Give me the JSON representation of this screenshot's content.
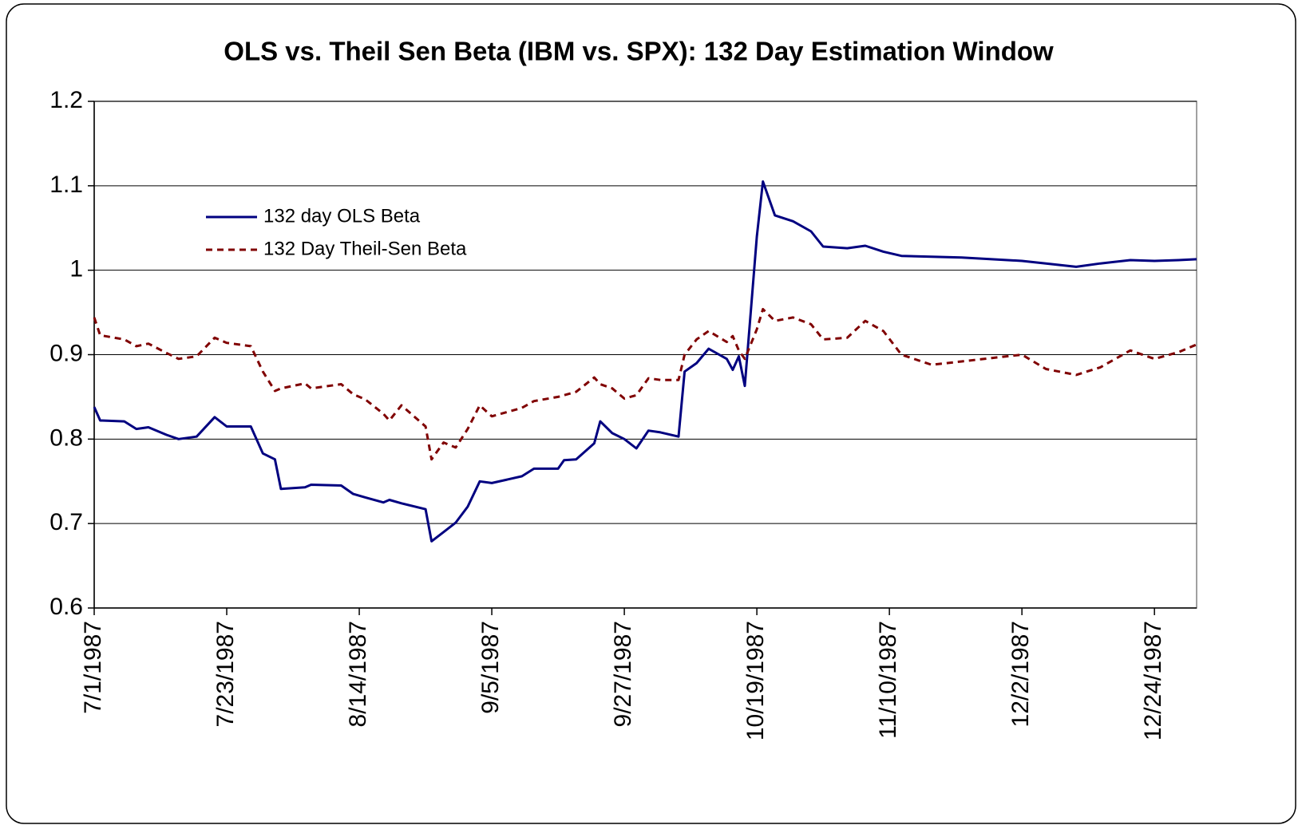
{
  "chart_data": {
    "type": "line",
    "title": "OLS vs. Theil Sen Beta (IBM vs. SPX): 132 Day Estimation Window",
    "x": [
      "7/1/1987",
      "7/2/1987",
      "7/6/1987",
      "7/8/1987",
      "7/10/1987",
      "7/13/1987",
      "7/15/1987",
      "7/18/1987",
      "7/21/1987",
      "7/23/1987",
      "7/27/1987",
      "7/29/1987",
      "7/31/1987",
      "8/1/1987",
      "8/5/1987",
      "8/6/1987",
      "8/11/1987",
      "8/13/1987",
      "8/15/1987",
      "8/18/1987",
      "8/19/1987",
      "8/21/1987",
      "8/25/1987",
      "8/26/1987",
      "8/28/1987",
      "8/30/1987",
      "9/1/1987",
      "9/3/1987",
      "9/5/1987",
      "9/10/1987",
      "9/12/1987",
      "9/16/1987",
      "9/17/1987",
      "9/19/1987",
      "9/22/1987",
      "9/23/1987",
      "9/25/1987",
      "9/27/1987",
      "9/29/1987",
      "10/1/1987",
      "10/3/1987",
      "10/6/1987",
      "10/7/1987",
      "10/9/1987",
      "10/11/1987",
      "10/14/1987",
      "10/15/1987",
      "10/16/1987",
      "10/17/1987",
      "10/19/1987",
      "10/20/1987",
      "10/22/1987",
      "10/25/1987",
      "10/28/1987",
      "10/30/1987",
      "11/3/1987",
      "11/6/1987",
      "11/9/1987",
      "11/12/1987",
      "11/17/1987",
      "11/22/1987",
      "11/27/1987",
      "12/2/1987",
      "12/6/1987",
      "12/11/1987",
      "12/15/1987",
      "12/20/1987",
      "12/24/1987",
      "12/28/1987",
      "12/31/1987"
    ],
    "series": [
      {
        "name": "132 day OLS Beta",
        "color": "#000080",
        "line_style": "solid",
        "values": [
          0.838,
          0.822,
          0.821,
          0.812,
          0.814,
          0.805,
          0.8,
          0.803,
          0.826,
          0.815,
          0.815,
          0.783,
          0.776,
          0.741,
          0.743,
          0.746,
          0.745,
          0.735,
          0.731,
          0.725,
          0.728,
          0.724,
          0.717,
          0.679,
          0.69,
          0.701,
          0.72,
          0.75,
          0.748,
          0.756,
          0.765,
          0.765,
          0.775,
          0.776,
          0.795,
          0.821,
          0.807,
          0.8,
          0.789,
          0.81,
          0.808,
          0.803,
          0.88,
          0.89,
          0.907,
          0.895,
          0.882,
          0.898,
          0.863,
          1.04,
          1.105,
          1.065,
          1.058,
          1.046,
          1.028,
          1.026,
          1.029,
          1.022,
          1.017,
          1.016,
          1.015,
          1.013,
          1.011,
          1.008,
          1.004,
          1.008,
          1.012,
          1.011,
          1.012,
          1.013
        ]
      },
      {
        "name": "132 Day Theil-Sen Beta",
        "color": "#800000",
        "line_style": "dashed",
        "values": [
          0.944,
          0.923,
          0.918,
          0.91,
          0.913,
          0.902,
          0.895,
          0.898,
          0.92,
          0.914,
          0.91,
          0.88,
          0.857,
          0.86,
          0.866,
          0.86,
          0.865,
          0.853,
          0.847,
          0.83,
          0.822,
          0.84,
          0.815,
          0.776,
          0.796,
          0.79,
          0.812,
          0.84,
          0.827,
          0.837,
          0.845,
          0.85,
          0.852,
          0.856,
          0.873,
          0.865,
          0.86,
          0.848,
          0.852,
          0.872,
          0.87,
          0.87,
          0.9,
          0.918,
          0.928,
          0.915,
          0.922,
          0.905,
          0.895,
          0.93,
          0.954,
          0.94,
          0.944,
          0.936,
          0.918,
          0.92,
          0.94,
          0.928,
          0.9,
          0.888,
          0.892,
          0.896,
          0.9,
          0.883,
          0.876,
          0.885,
          0.905,
          0.895,
          0.903,
          0.912
        ]
      }
    ],
    "xlim": [
      "7/1/1987",
      "12/31/1987"
    ],
    "xticks": [
      "7/1/1987",
      "7/23/1987",
      "8/14/1987",
      "9/5/1987",
      "9/27/1987",
      "10/19/1987",
      "11/10/1987",
      "12/2/1987",
      "12/24/1987"
    ],
    "ylim": [
      0.6,
      1.2
    ],
    "yticks": [
      0.6,
      0.7,
      0.8,
      0.9,
      1,
      1.1,
      1.2
    ],
    "grid": true,
    "legend": "upper-left"
  }
}
